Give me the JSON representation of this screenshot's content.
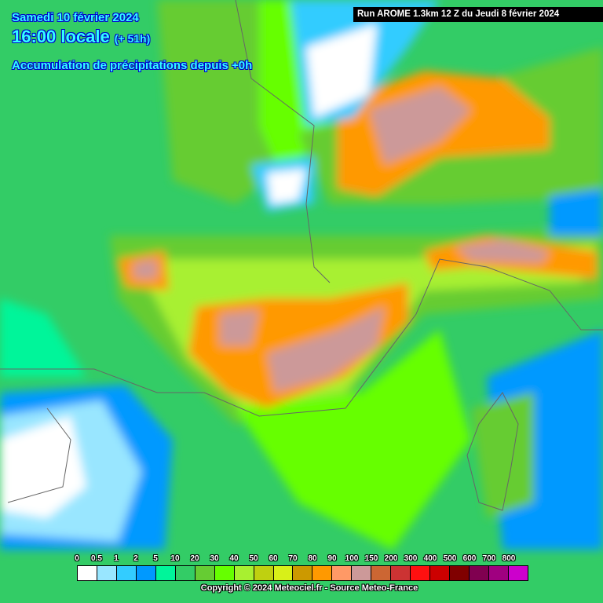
{
  "header": {
    "date": "Samedi 10 février 2024",
    "time": "16:00 locale",
    "lead": "(+ 51h)",
    "parameter": "Accumulation de précipitations depuis +0h",
    "run": "Run AROME 1.3km 12 Z du Jeudi 8 février 2024"
  },
  "legend": {
    "unit_labels": [
      "0",
      "0.5",
      "1",
      "2",
      "5",
      "10",
      "20",
      "30",
      "40",
      "50",
      "60",
      "70",
      "80",
      "90",
      "100",
      "150",
      "200",
      "300",
      "400",
      "500",
      "600",
      "700",
      "800"
    ],
    "colors": [
      "#ffffff",
      "#99e6ff",
      "#33ccff",
      "#0099ff",
      "#00f59a",
      "#33cc66",
      "#66cc33",
      "#66ff00",
      "#a8f030",
      "#bfd010",
      "#d8f018",
      "#cc9900",
      "#ff9900",
      "#ff9966",
      "#cc9999",
      "#cc6633",
      "#cc3333",
      "#ff1010",
      "#cc0000",
      "#800000",
      "#800050",
      "#a00080",
      "#cc00cc"
    ]
  },
  "footer": {
    "copyright": "Copyright © 2024 Meteociel.fr - Source Meteo-France"
  }
}
